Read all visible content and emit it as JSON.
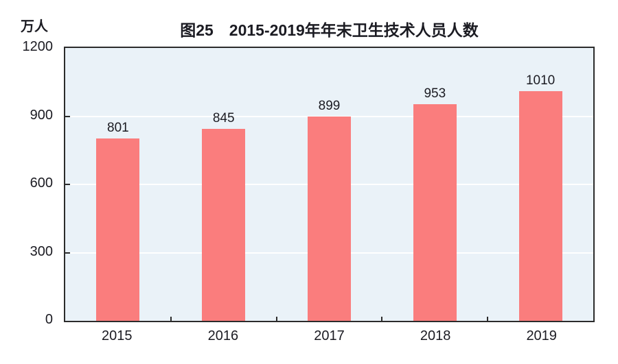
{
  "chart": {
    "title": "图25　2015-2019年年末卫生技术人员人数",
    "unit_label": "万人"
  },
  "chart_data": {
    "type": "bar",
    "title": "图25　2015-2019年年末卫生技术人员人数",
    "categories": [
      "2015",
      "2016",
      "2017",
      "2018",
      "2019"
    ],
    "values": [
      801,
      845,
      899,
      953,
      1010
    ],
    "data_labels": [
      "801",
      "845",
      "899",
      "953",
      "1010"
    ],
    "xlabel": "",
    "ylabel": "万人",
    "ylim": [
      0,
      1200
    ],
    "yticks": [
      0,
      300,
      600,
      900,
      1200
    ],
    "grid": true,
    "legend_position": "none",
    "colors": {
      "bar": "#fa7d7d",
      "plot_background": "#eaf2f8",
      "gridline": "#ffffff",
      "axis": "#2b2b2b",
      "text": "#1b1b22"
    }
  }
}
